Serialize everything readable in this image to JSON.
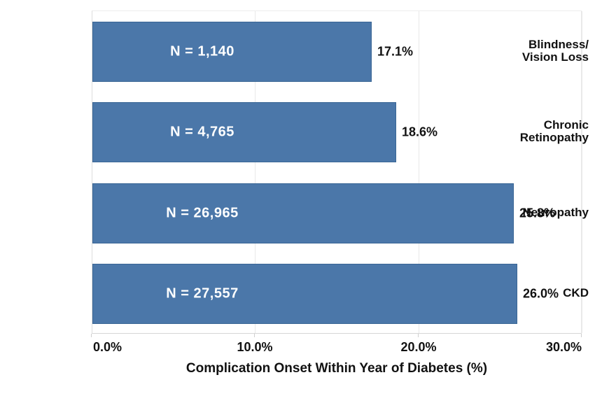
{
  "chart_data": {
    "type": "bar",
    "orientation": "horizontal",
    "title": "",
    "xlabel": "Complication Onset Within Year of Diabetes (%)",
    "ylabel": "",
    "xlim": [
      0,
      30
    ],
    "grid": "vertical gridlines at x ticks",
    "legend": "none",
    "categories": [
      "Blindness/\nVision Loss",
      "Chronic\nRetinopathy",
      "Neuropathy",
      "CKD"
    ],
    "values": [
      17.1,
      18.6,
      25.8,
      26.0
    ],
    "bar_inner_labels": [
      "N = 1,140",
      "N = 4,765",
      "N = 26,965",
      "N = 27,557"
    ],
    "value_labels": [
      "17.1%",
      "18.6%",
      "25.8%",
      "26.0%"
    ],
    "x_ticks": [
      {
        "value": 0,
        "label": "0.0%"
      },
      {
        "value": 10,
        "label": "10.0%"
      },
      {
        "value": 20,
        "label": "20.0%"
      },
      {
        "value": 30,
        "label": "30.0%"
      }
    ],
    "colors": {
      "bar_fill": "#4B77A9",
      "bar_border": "#3A6695",
      "gridline": "#e9e9e9",
      "axis_line": "#d6d6d6",
      "inner_label_text": "#ffffff",
      "outer_label_text": "#111111"
    }
  }
}
